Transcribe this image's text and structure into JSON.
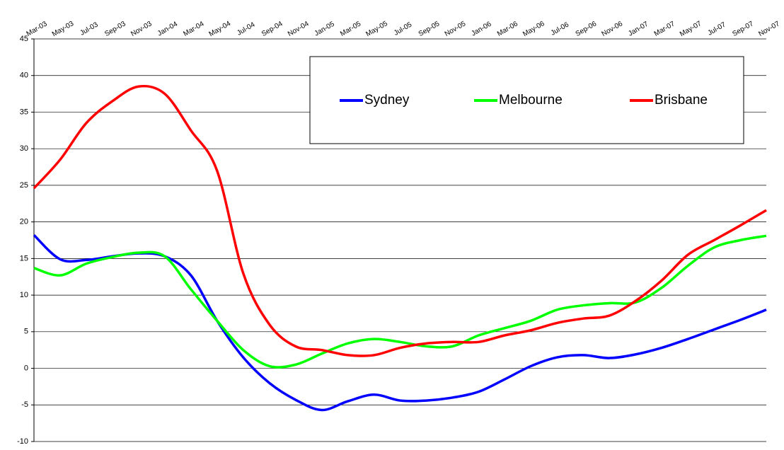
{
  "chart_data": {
    "type": "line",
    "categories": [
      "Mar-03",
      "May-03",
      "Jul-03",
      "Sep-03",
      "Nov-03",
      "Jan-04",
      "Mar-04",
      "May-04",
      "Jul-04",
      "Sep-04",
      "Nov-04",
      "Jan-05",
      "Mar-05",
      "May-05",
      "Jul-05",
      "Sep-05",
      "Nov-05",
      "Jan-06",
      "Mar-06",
      "May-06",
      "Jul-06",
      "Sep-06",
      "Nov-06",
      "Jan-07",
      "Mar-07",
      "May-07",
      "Jul-07",
      "Sep-07",
      "Nov-07"
    ],
    "series": [
      {
        "name": "Sydney",
        "color": "#0000ff",
        "values": [
          18.2,
          14.9,
          14.8,
          15.3,
          15.7,
          15.3,
          12.7,
          6.5,
          1.5,
          -2,
          -4.3,
          -5.7,
          -4.5,
          -3.6,
          -4.4,
          -4.4,
          -4,
          -3.2,
          -1.5,
          0.3,
          1.5,
          1.8,
          1.4,
          1.9,
          2.8,
          4,
          5.3,
          6.6,
          8
        ]
      },
      {
        "name": "Melbourne",
        "color": "#00ff00",
        "values": [
          13.7,
          12.7,
          14.3,
          15.2,
          15.8,
          15.3,
          10.8,
          6.5,
          2.5,
          0.3,
          0.5,
          2,
          3.4,
          4,
          3.6,
          3,
          3,
          4.5,
          5.5,
          6.5,
          8,
          8.6,
          8.9,
          9,
          11,
          14,
          16.5,
          17.5,
          18.1
        ]
      },
      {
        "name": "Brisbane",
        "color": "#ff0000",
        "values": [
          24.6,
          28.5,
          33.5,
          36.5,
          38.5,
          37.5,
          32.5,
          27,
          13,
          6,
          3,
          2.5,
          1.8,
          1.8,
          2.8,
          3.4,
          3.6,
          3.6,
          4.5,
          5.2,
          6.2,
          6.8,
          7.2,
          9.2,
          12,
          15.5,
          17.5,
          19.5,
          21.6
        ]
      }
    ],
    "ylim": [
      -10,
      45
    ],
    "yticks": [
      -10,
      -5,
      0,
      5,
      10,
      15,
      20,
      25,
      30,
      35,
      40,
      45
    ],
    "grid": true
  }
}
